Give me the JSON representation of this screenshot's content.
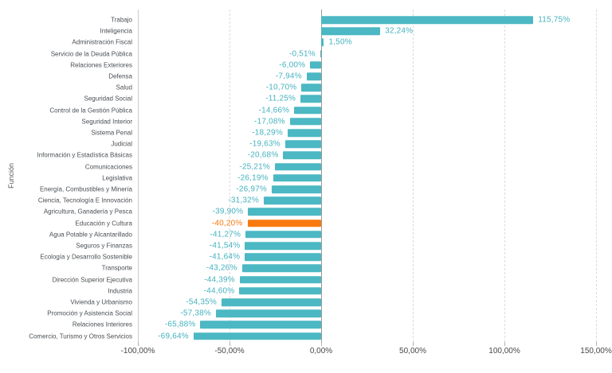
{
  "chart_data": {
    "type": "bar",
    "orientation": "horizontal",
    "title": "",
    "xlabel": "",
    "ylabel": "Función",
    "grid": true,
    "legend": null,
    "xlim": [
      -100,
      158
    ],
    "x_ticks": [
      {
        "value": -100,
        "label": "-100,00%"
      },
      {
        "value": -50,
        "label": "-50,00%"
      },
      {
        "value": 0,
        "label": "0,00%"
      },
      {
        "value": 50,
        "label": "50,00%"
      },
      {
        "value": 100,
        "label": "100,00%"
      },
      {
        "value": 150,
        "label": "150,00%"
      }
    ],
    "categories": [
      "Trabajo",
      "Inteligencia",
      "Administración Fiscal",
      "Servicio de la Deuda Pública",
      "Relaciones Exteriores",
      "Defensa",
      "Salud",
      "Seguridad Social",
      "Control de la Gestión Pública",
      "Seguridad Interior",
      "Sistema Penal",
      "Judicial",
      "Información y Estadística Básicas",
      "Comunicaciones",
      "Legislativa",
      "Energía, Combustibles y Minería",
      "Ciencia, Tecnología E Innovación",
      "Agricultura, Ganadería y Pesca",
      "Educación y Cultura",
      "Agua Potable y Alcantarillado",
      "Seguros y Finanzas",
      "Ecología y Desarrollo Sostenible",
      "Transporte",
      "Dirección Superior Ejecutiva",
      "Industria",
      "Vivienda y Urbanismo",
      "Promoción y Asistencia Social",
      "Relaciones Interiores",
      "Comercio, Turismo y Otros Servicios"
    ],
    "values": [
      115.75,
      32.24,
      1.5,
      -0.51,
      -6.0,
      -7.94,
      -10.7,
      -11.25,
      -14.66,
      -17.08,
      -18.29,
      -19.63,
      -20.68,
      -25.21,
      -26.19,
      -26.97,
      -31.32,
      -39.9,
      -40.2,
      -41.27,
      -41.54,
      -41.64,
      -43.26,
      -44.39,
      -44.6,
      -54.35,
      -57.38,
      -65.88,
      -69.64
    ],
    "value_labels": [
      "115,75%",
      "32,24%",
      "1,50%",
      "-0,51%",
      "-6,00%",
      "-7,94%",
      "-10,70%",
      "-11,25%",
      "-14,66%",
      "-17,08%",
      "-18,29%",
      "-19,63%",
      "-20,68%",
      "-25,21%",
      "-26,19%",
      "-26,97%",
      "-31,32%",
      "-39,90%",
      "-40,20%",
      "-41,27%",
      "-41,54%",
      "-41,64%",
      "-43,26%",
      "-44,39%",
      "-44,60%",
      "-54,35%",
      "-57,38%",
      "-65,88%",
      "-69,64%"
    ],
    "highlight_index": 18,
    "highlight_category": "Educación y Cultura",
    "colors": {
      "bar": "#4BB8C3",
      "highlight_bar": "#F8790F",
      "value_label": "#45B2BF",
      "highlight_value_label": "#F8790F",
      "category_label": "#4A4F54",
      "axis_tick_label": "#47484A",
      "zero_line": "#999999",
      "axis_line": "#CCCCCC",
      "gridline": "#DCDCDC",
      "background": "#FFFFFF"
    }
  }
}
